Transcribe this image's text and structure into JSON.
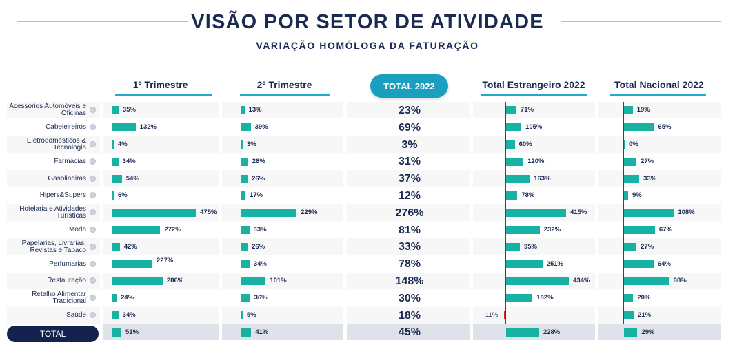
{
  "chart_data": {
    "type": "bar",
    "title": "VISÃO POR SETOR DE ATIVIDADE",
    "subtitle": "VARIAÇÃO HOMÓLOGA DA FATURAÇÃO",
    "categories": [
      "Acessórios Automóveis e Oficinas",
      "Cabeleireiros",
      "Eletrodomésticos & Tecnologia",
      "Farmácias",
      "Gasolineiras",
      "Hipers&Supers",
      "Hotelaria e Atividades Turísticas",
      "Moda",
      "Papelarias, Livrarias, Revistas e Tabaco",
      "Perfumarias",
      "Restauração",
      "Retalho Alimentar Tradicional",
      "Saúde",
      "TOTAL"
    ],
    "series": [
      {
        "name": "1º Trimestre",
        "values": [
          35,
          132,
          4,
          34,
          54,
          6,
          475,
          272,
          42,
          227,
          286,
          24,
          34,
          51
        ]
      },
      {
        "name": "2º Trimestre",
        "values": [
          13,
          39,
          3,
          28,
          26,
          17,
          229,
          33,
          26,
          34,
          101,
          36,
          5,
          41
        ]
      },
      {
        "name": "TOTAL 2022",
        "values": [
          23,
          69,
          3,
          31,
          37,
          12,
          276,
          81,
          33,
          78,
          148,
          30,
          18,
          45
        ]
      },
      {
        "name": "Total Estrangeiro 2022",
        "values": [
          71,
          105,
          60,
          120,
          163,
          78,
          415,
          232,
          95,
          251,
          434,
          182,
          -11,
          228
        ]
      },
      {
        "name": "Total Nacional 2022",
        "values": [
          19,
          65,
          0,
          27,
          33,
          9,
          108,
          67,
          27,
          64,
          98,
          20,
          21,
          29
        ]
      }
    ],
    "unit": "%",
    "colors": {
      "bar": "#17b2a2",
      "negative": "#d81f26",
      "accent": "#1a9fbf",
      "title": "#1b2a52",
      "total_pill": "#14234d"
    }
  }
}
